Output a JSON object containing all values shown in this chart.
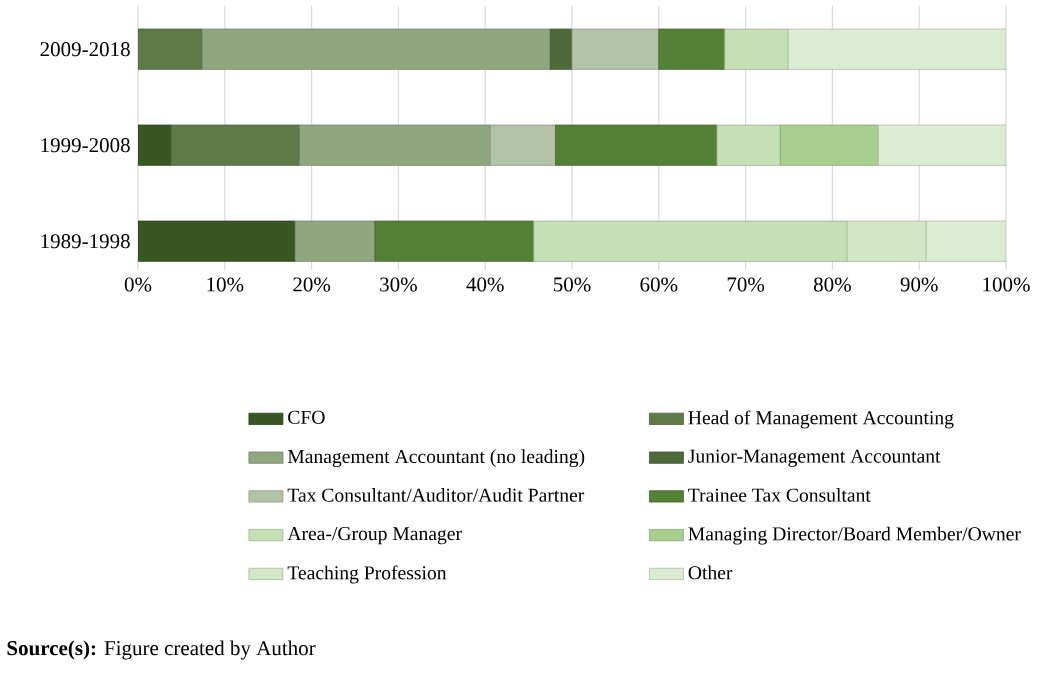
{
  "chart_data": {
    "type": "bar",
    "orientation": "horizontal",
    "stacked": true,
    "categories": [
      "2009-2018",
      "1999-2008",
      "1989-1998"
    ],
    "series": [
      {
        "name": "CFO",
        "color": "#375623",
        "values": [
          null,
          3.8,
          18.1
        ]
      },
      {
        "name": "Head of Management Accounting",
        "color": "#5e7a48",
        "values": [
          7.4,
          14.8,
          null
        ]
      },
      {
        "name": "Management Accountant (no leading)",
        "color": "#8fa67f",
        "values": [
          40.1,
          22.0,
          9.2
        ]
      },
      {
        "name": "Junior-Management Accountant",
        "color": "#4f6a3a",
        "values": [
          2.5,
          null,
          null
        ]
      },
      {
        "name": "Tax Consultant/Auditor/Audit Partner",
        "color": "#b4c3a7",
        "values": [
          10.0,
          7.5,
          null
        ]
      },
      {
        "name": "Trainee Tax Consultant",
        "color": "#538135",
        "values": [
          7.6,
          18.6,
          18.3
        ]
      },
      {
        "name": "Area-/Group Manager",
        "color": "#c5e0b4",
        "values": [
          7.3,
          7.3,
          36.1
        ]
      },
      {
        "name": "Managing Director/Board Member/Owner",
        "color": "#a9cf8f",
        "values": [
          null,
          11.3,
          null
        ]
      },
      {
        "name": "Teaching Profession",
        "color": "#d3e6c6",
        "values": [
          null,
          null,
          9.1
        ]
      },
      {
        "name": "Other",
        "color": "#dcecd2",
        "values": [
          25.1,
          14.7,
          9.2
        ]
      }
    ],
    "xlim": [
      0,
      100
    ],
    "xticks": [
      {
        "value": 0,
        "label": "0%"
      },
      {
        "value": 10,
        "label": "10%"
      },
      {
        "value": 20,
        "label": "20%"
      },
      {
        "value": 30,
        "label": "30%"
      },
      {
        "value": 40,
        "label": "40%"
      },
      {
        "value": 50,
        "label": "50%"
      },
      {
        "value": 60,
        "label": "60%"
      },
      {
        "value": 70,
        "label": "70%"
      },
      {
        "value": 80,
        "label": "80%"
      },
      {
        "value": 90,
        "label": "90%"
      },
      {
        "value": 100,
        "label": "100%"
      }
    ],
    "grid": "x",
    "legend": "bottom",
    "annotations": [
      "**Source(s):** Figure created by Author"
    ]
  }
}
